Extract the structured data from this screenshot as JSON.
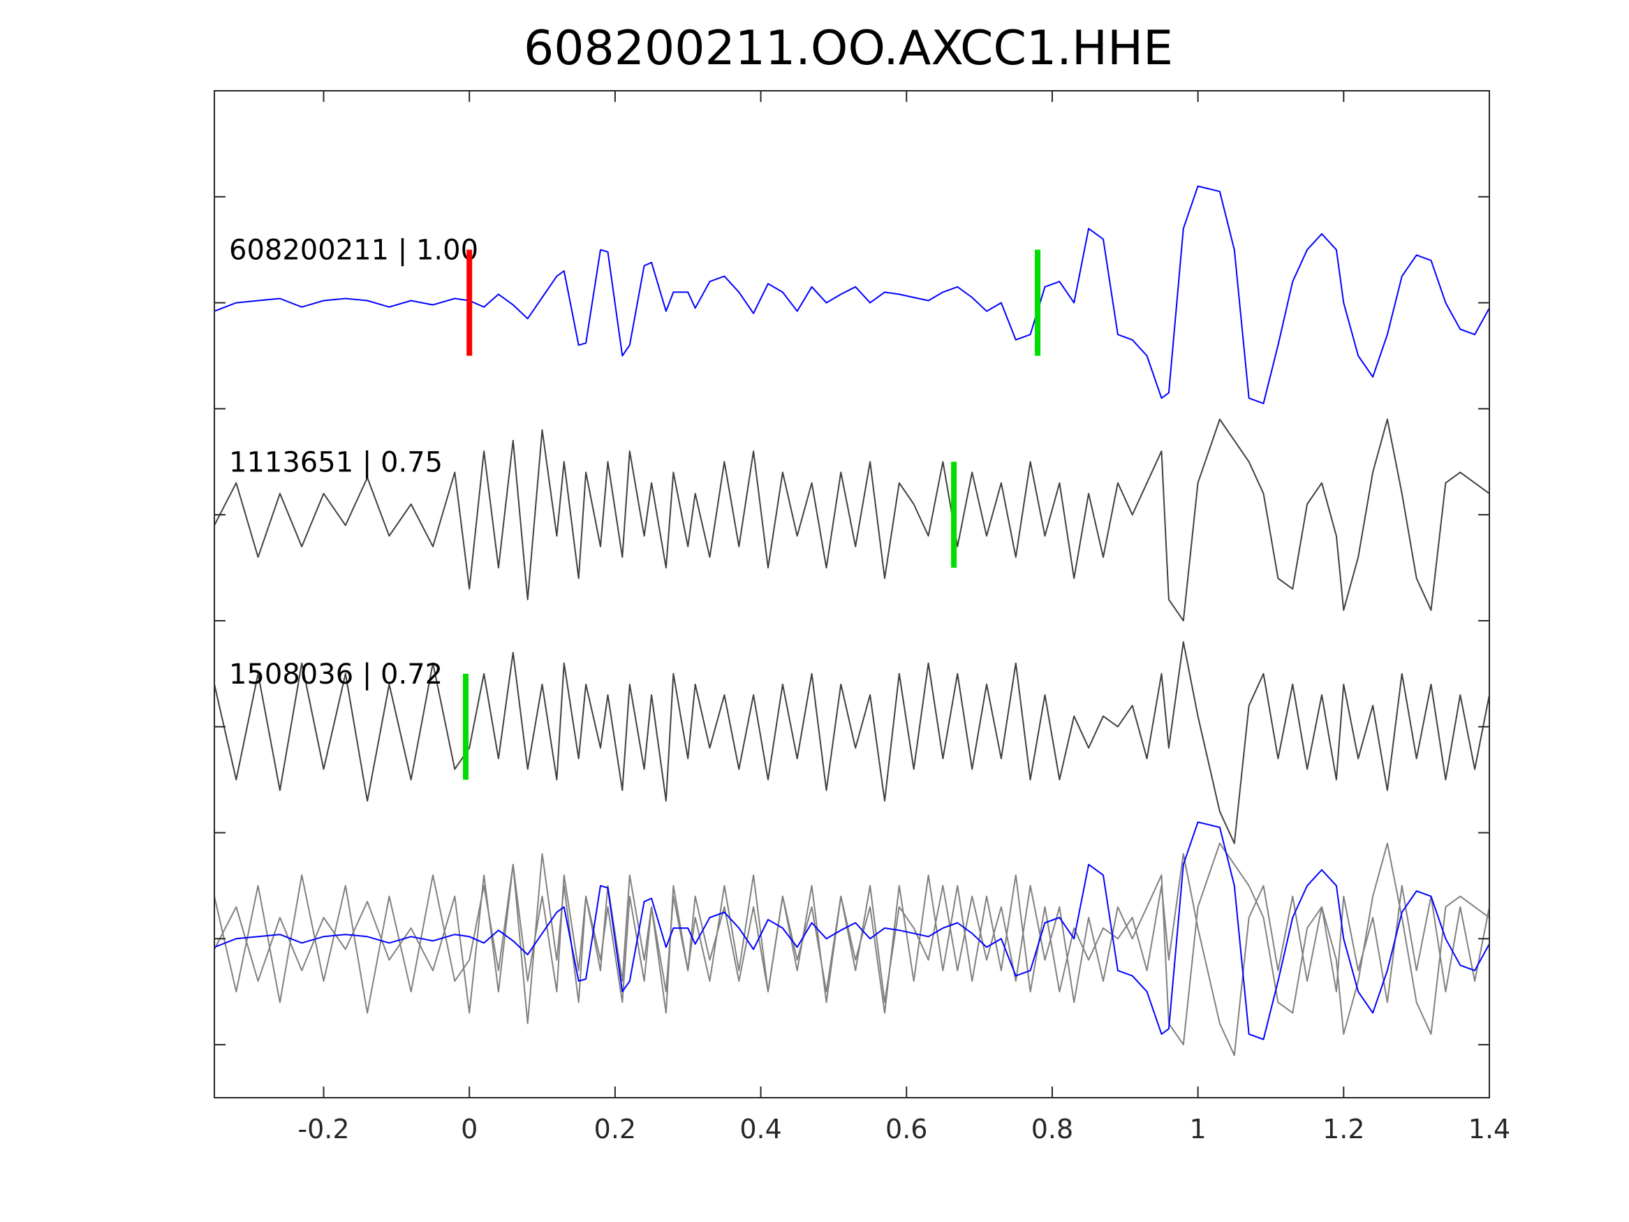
{
  "chart_data": {
    "type": "line",
    "title": "608200211.OO.AXCC1.HHE",
    "xlabel": "",
    "ylabel": "",
    "xlim": [
      -0.35,
      1.4
    ],
    "xticks": [
      -0.2,
      0,
      0.2,
      0.4,
      0.6,
      0.8,
      1,
      1.2,
      1.4
    ],
    "xtick_labels": [
      "-0.2",
      "0",
      "0.2",
      "0.4",
      "0.6",
      "0.8",
      "1",
      "1.2",
      "1.4"
    ],
    "ylim": [
      -1.5,
      8
    ],
    "yticks": [
      -1,
      0,
      1,
      2,
      3,
      4,
      5,
      6,
      7
    ],
    "show_ytick_labels": false,
    "grid": false,
    "colors": {
      "template": "#0000ff",
      "trace": "#404040",
      "overlay": "#808080",
      "p_pick": "#ff0000",
      "s_pick": "#00dd00",
      "axis": "#262626"
    },
    "traces": [
      {
        "label": "608200211 | 1.00",
        "offset": 6,
        "amplitude": 1.0,
        "color": "template",
        "picks": [
          {
            "x": 0.0,
            "color": "p_pick"
          },
          {
            "x": 0.78,
            "color": "s_pick"
          }
        ],
        "x": [
          -0.35,
          -0.32,
          -0.29,
          -0.26,
          -0.23,
          -0.2,
          -0.17,
          -0.14,
          -0.11,
          -0.08,
          -0.05,
          -0.02,
          0.0,
          0.02,
          0.04,
          0.06,
          0.08,
          0.1,
          0.12,
          0.13,
          0.15,
          0.16,
          0.18,
          0.19,
          0.21,
          0.22,
          0.24,
          0.25,
          0.27,
          0.28,
          0.3,
          0.31,
          0.33,
          0.35,
          0.37,
          0.39,
          0.41,
          0.43,
          0.45,
          0.47,
          0.49,
          0.51,
          0.53,
          0.55,
          0.57,
          0.59,
          0.61,
          0.63,
          0.65,
          0.67,
          0.69,
          0.71,
          0.73,
          0.75,
          0.77,
          0.79,
          0.81,
          0.83,
          0.85,
          0.87,
          0.89,
          0.91,
          0.93,
          0.95,
          0.96,
          0.98,
          1.0,
          1.03,
          1.05,
          1.07,
          1.09,
          1.11,
          1.13,
          1.15,
          1.17,
          1.19,
          1.2,
          1.22,
          1.24,
          1.26,
          1.28,
          1.3,
          1.32,
          1.34,
          1.36,
          1.38,
          1.4
        ],
        "y": [
          -0.08,
          0.0,
          0.02,
          0.04,
          -0.04,
          0.02,
          0.04,
          0.02,
          -0.04,
          0.02,
          -0.02,
          0.04,
          0.02,
          -0.04,
          0.08,
          -0.02,
          -0.15,
          0.05,
          0.25,
          0.3,
          -0.4,
          -0.38,
          0.5,
          0.48,
          -0.5,
          -0.4,
          0.35,
          0.38,
          -0.08,
          0.1,
          0.1,
          -0.05,
          0.2,
          0.25,
          0.1,
          -0.1,
          0.18,
          0.1,
          -0.08,
          0.15,
          0.0,
          0.08,
          0.15,
          0.0,
          0.1,
          0.08,
          0.05,
          0.02,
          0.1,
          0.15,
          0.05,
          -0.08,
          0.0,
          -0.35,
          -0.3,
          0.15,
          0.2,
          0.0,
          0.7,
          0.6,
          -0.3,
          -0.35,
          -0.5,
          -0.9,
          -0.85,
          0.7,
          1.1,
          1.05,
          0.5,
          -0.9,
          -0.95,
          -0.4,
          0.2,
          0.5,
          0.65,
          0.5,
          0.0,
          -0.5,
          -0.7,
          -0.3,
          0.25,
          0.45,
          0.4,
          0.0,
          -0.25,
          -0.3,
          -0.05
        ]
      },
      {
        "label": "1113651 | 0.75",
        "offset": 4,
        "amplitude": 0.75,
        "color": "trace",
        "picks": [
          {
            "x": 0.665,
            "color": "s_pick"
          }
        ],
        "x": [
          -0.35,
          -0.32,
          -0.29,
          -0.26,
          -0.23,
          -0.2,
          -0.17,
          -0.14,
          -0.11,
          -0.08,
          -0.05,
          -0.02,
          0.0,
          0.02,
          0.04,
          0.06,
          0.08,
          0.1,
          0.12,
          0.13,
          0.15,
          0.16,
          0.18,
          0.19,
          0.21,
          0.22,
          0.24,
          0.25,
          0.27,
          0.28,
          0.3,
          0.31,
          0.33,
          0.35,
          0.37,
          0.39,
          0.41,
          0.43,
          0.45,
          0.47,
          0.49,
          0.51,
          0.53,
          0.55,
          0.57,
          0.59,
          0.61,
          0.63,
          0.65,
          0.67,
          0.69,
          0.71,
          0.73,
          0.75,
          0.77,
          0.79,
          0.81,
          0.83,
          0.85,
          0.87,
          0.89,
          0.91,
          0.93,
          0.95,
          0.96,
          0.98,
          1.0,
          1.03,
          1.05,
          1.07,
          1.09,
          1.11,
          1.13,
          1.15,
          1.17,
          1.19,
          1.2,
          1.22,
          1.24,
          1.26,
          1.28,
          1.3,
          1.32,
          1.34,
          1.36,
          1.38,
          1.4
        ],
        "y": [
          -0.1,
          0.3,
          -0.4,
          0.2,
          -0.3,
          0.2,
          -0.1,
          0.35,
          -0.2,
          0.1,
          -0.3,
          0.4,
          -0.7,
          0.6,
          -0.5,
          0.7,
          -0.8,
          0.8,
          -0.2,
          0.5,
          -0.6,
          0.4,
          -0.3,
          0.5,
          -0.4,
          0.6,
          -0.2,
          0.3,
          -0.5,
          0.4,
          -0.3,
          0.2,
          -0.4,
          0.5,
          -0.3,
          0.6,
          -0.5,
          0.4,
          -0.2,
          0.3,
          -0.5,
          0.4,
          -0.3,
          0.5,
          -0.6,
          0.3,
          0.1,
          -0.2,
          0.5,
          -0.3,
          0.4,
          -0.2,
          0.3,
          -0.4,
          0.5,
          -0.2,
          0.3,
          -0.6,
          0.2,
          -0.4,
          0.3,
          0.0,
          0.3,
          0.6,
          -0.8,
          -1.0,
          0.3,
          0.9,
          0.7,
          0.5,
          0.2,
          -0.6,
          -0.7,
          0.1,
          0.3,
          -0.2,
          -0.9,
          -0.4,
          0.4,
          0.9,
          0.2,
          -0.6,
          -0.9,
          0.3,
          0.4,
          0.3,
          0.2
        ]
      },
      {
        "label": "1508036 | 0.72",
        "offset": 2,
        "amplitude": 0.72,
        "color": "trace",
        "picks": [
          {
            "x": -0.005,
            "color": "s_pick"
          }
        ],
        "x": [
          -0.35,
          -0.32,
          -0.29,
          -0.26,
          -0.23,
          -0.2,
          -0.17,
          -0.14,
          -0.11,
          -0.08,
          -0.05,
          -0.02,
          0.0,
          0.02,
          0.04,
          0.06,
          0.08,
          0.1,
          0.12,
          0.13,
          0.15,
          0.16,
          0.18,
          0.19,
          0.21,
          0.22,
          0.24,
          0.25,
          0.27,
          0.28,
          0.3,
          0.31,
          0.33,
          0.35,
          0.37,
          0.39,
          0.41,
          0.43,
          0.45,
          0.47,
          0.49,
          0.51,
          0.53,
          0.55,
          0.57,
          0.59,
          0.61,
          0.63,
          0.65,
          0.67,
          0.69,
          0.71,
          0.73,
          0.75,
          0.77,
          0.79,
          0.81,
          0.83,
          0.85,
          0.87,
          0.89,
          0.91,
          0.93,
          0.95,
          0.96,
          0.98,
          1.0,
          1.03,
          1.05,
          1.07,
          1.09,
          1.11,
          1.13,
          1.15,
          1.17,
          1.19,
          1.2,
          1.22,
          1.24,
          1.26,
          1.28,
          1.3,
          1.32,
          1.34,
          1.36,
          1.38,
          1.4
        ],
        "y": [
          0.4,
          -0.5,
          0.5,
          -0.6,
          0.6,
          -0.4,
          0.5,
          -0.7,
          0.4,
          -0.5,
          0.6,
          -0.4,
          -0.2,
          0.5,
          -0.3,
          0.7,
          -0.4,
          0.4,
          -0.5,
          0.6,
          -0.3,
          0.4,
          -0.2,
          0.3,
          -0.6,
          0.4,
          -0.4,
          0.3,
          -0.7,
          0.5,
          -0.3,
          0.4,
          -0.2,
          0.3,
          -0.4,
          0.3,
          -0.5,
          0.4,
          -0.3,
          0.5,
          -0.6,
          0.4,
          -0.2,
          0.3,
          -0.7,
          0.5,
          -0.4,
          0.6,
          -0.3,
          0.5,
          -0.4,
          0.4,
          -0.3,
          0.6,
          -0.5,
          0.3,
          -0.5,
          0.1,
          -0.2,
          0.1,
          0.0,
          0.2,
          -0.3,
          0.5,
          -0.2,
          0.8,
          0.1,
          -0.8,
          -1.1,
          0.2,
          0.5,
          -0.3,
          0.4,
          -0.4,
          0.3,
          -0.5,
          0.4,
          -0.3,
          0.2,
          -0.6,
          0.5,
          -0.3,
          0.4,
          -0.5,
          0.3,
          -0.4,
          0.3
        ]
      },
      {
        "label": "",
        "offset": 0,
        "amplitude": 1.0,
        "color": "overlay",
        "overlay": true,
        "picks": [],
        "x": [
          -0.35,
          -0.32,
          -0.29,
          -0.26,
          -0.23,
          -0.2,
          -0.17,
          -0.14,
          -0.11,
          -0.08,
          -0.05,
          -0.02,
          0.0,
          0.02,
          0.04,
          0.06,
          0.08,
          0.1,
          0.12,
          0.13,
          0.15,
          0.16,
          0.18,
          0.19,
          0.21,
          0.22,
          0.24,
          0.25,
          0.27,
          0.28,
          0.3,
          0.31,
          0.33,
          0.35,
          0.37,
          0.39,
          0.41,
          0.43,
          0.45,
          0.47,
          0.49,
          0.51,
          0.53,
          0.55,
          0.57,
          0.59,
          0.61,
          0.63,
          0.65,
          0.67,
          0.69,
          0.71,
          0.73,
          0.75,
          0.77,
          0.79,
          0.81,
          0.83,
          0.85,
          0.87,
          0.89,
          0.91,
          0.93,
          0.95,
          0.96,
          0.98,
          1.0,
          1.03,
          1.05,
          1.07,
          1.09,
          1.11,
          1.13,
          1.15,
          1.17,
          1.19,
          1.2,
          1.22,
          1.24,
          1.26,
          1.28,
          1.3,
          1.32,
          1.34,
          1.36,
          1.38,
          1.4
        ],
        "y": [
          -0.08,
          0.0,
          0.02,
          0.04,
          -0.04,
          0.02,
          0.04,
          0.02,
          -0.04,
          0.02,
          -0.02,
          0.04,
          0.02,
          -0.04,
          0.08,
          -0.02,
          -0.15,
          0.05,
          0.25,
          0.3,
          -0.4,
          -0.38,
          0.5,
          0.48,
          -0.5,
          -0.4,
          0.35,
          0.38,
          -0.08,
          0.1,
          0.1,
          -0.05,
          0.2,
          0.25,
          0.1,
          -0.1,
          0.18,
          0.1,
          -0.08,
          0.15,
          0.0,
          0.08,
          0.15,
          0.0,
          0.1,
          0.08,
          0.05,
          0.02,
          0.1,
          0.15,
          0.05,
          -0.08,
          0.0,
          -0.35,
          -0.3,
          0.15,
          0.2,
          0.0,
          0.7,
          0.6,
          -0.3,
          -0.35,
          -0.5,
          -0.9,
          -0.85,
          0.7,
          1.1,
          1.05,
          0.5,
          -0.9,
          -0.95,
          -0.4,
          0.2,
          0.5,
          0.65,
          0.5,
          0.0,
          -0.5,
          -0.7,
          -0.3,
          0.25,
          0.45,
          0.4,
          0.0,
          -0.25,
          -0.3,
          -0.05
        ]
      }
    ]
  }
}
